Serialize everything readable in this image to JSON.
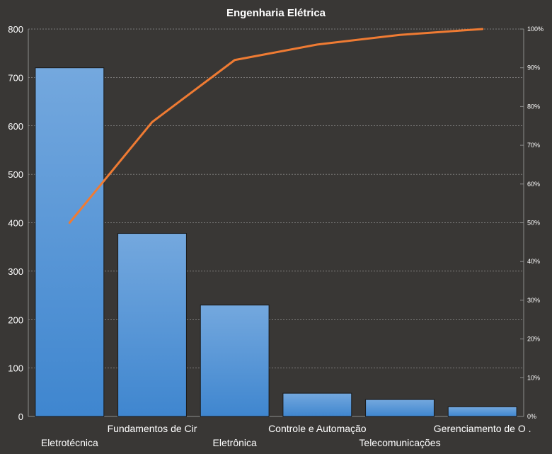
{
  "chart_data": {
    "type": "bar",
    "title": "Engenharia Elétrica",
    "categories": [
      "Eletrotécnica",
      "Fundamentos de Cir",
      "Eletrônica",
      "Controle e Automação",
      "Telecomunicações",
      "Gerenciamento de O ."
    ],
    "values": [
      720,
      378,
      230,
      48,
      35,
      20
    ],
    "cumulative_percent": [
      50,
      76,
      92,
      96,
      98.5,
      100
    ],
    "ylim": [
      0,
      800
    ],
    "yticks": [
      0,
      100,
      200,
      300,
      400,
      500,
      600,
      700,
      800
    ],
    "y2lim": [
      0,
      100
    ],
    "y2ticks": [
      "0%",
      "10%",
      "20%",
      "30%",
      "40%",
      "50%",
      "60%",
      "70%",
      "80%",
      "90%",
      "100%"
    ],
    "grid": true,
    "legend": "none",
    "xlabel": "",
    "ylabel": "",
    "colors": {
      "background": "#393735",
      "bar_top": "#74a8de",
      "bar_bottom": "#3f86cf",
      "line": "#ef7b33",
      "text": "#ffffff",
      "grid": "#bfbfbf"
    }
  }
}
